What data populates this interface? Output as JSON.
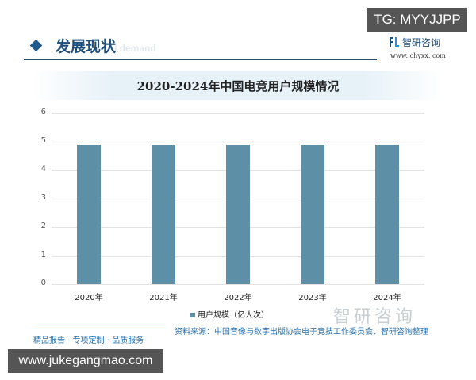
{
  "overlay": {
    "tg_label": "TG: MYYJJPP",
    "site_label": "www.jukegangmao.com"
  },
  "header": {
    "section_title": "发展现状",
    "section_ghost": "d demand",
    "brand_name": "智研咨询",
    "brand_url": "www. chyxx. com",
    "accent_color": "#1e5a8c"
  },
  "chart_data": {
    "type": "bar",
    "title": "2020-2024年中国电竞用户规模情况",
    "categories": [
      "2020年",
      "2021年",
      "2022年",
      "2023年",
      "2024年"
    ],
    "series": [
      {
        "name": "用户规模（亿人次）",
        "values": [
          4.89,
          4.89,
          4.89,
          4.89,
          4.89
        ],
        "color": "#5d8fa6"
      }
    ],
    "xlabel": "",
    "ylabel": "",
    "ylim": [
      0,
      6
    ],
    "yticks": [
      "0",
      "1",
      "2",
      "3",
      "4",
      "5",
      "6"
    ],
    "grid": true,
    "legend_position": "bottom"
  },
  "footer": {
    "watermark": "智研咨询",
    "source": "资料来源：中国音像与数字出版协会电子竞技工作委员会、智研咨询整理",
    "slogan": "精品报告 · 专项定制 · 品质服务"
  }
}
